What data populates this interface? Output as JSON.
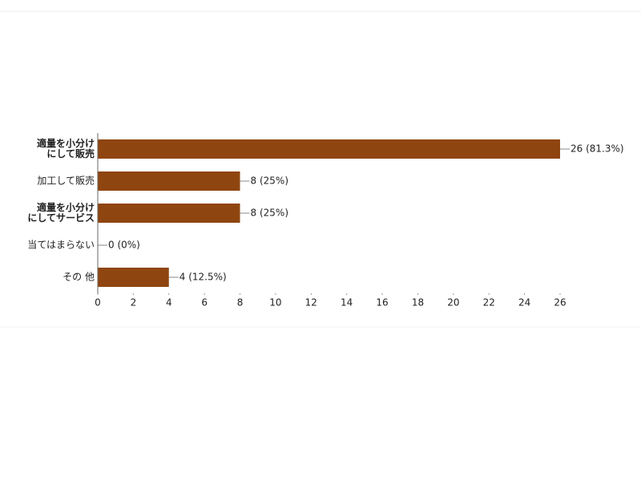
{
  "chart_data": {
    "type": "bar",
    "orientation": "horizontal",
    "categories": [
      [
        "適量を小分け",
        "にして販売"
      ],
      [
        "加工して販売"
      ],
      [
        "適量を小分け",
        "にしてサービス"
      ],
      [
        "当てはまらない"
      ],
      [
        "その 他"
      ]
    ],
    "values": [
      26,
      8,
      8,
      0,
      4
    ],
    "value_labels": [
      "26 (81.3%)",
      "8 (25%)",
      "8 (25%)",
      "0 (0%)",
      "4 (12.5%)"
    ],
    "color": "#8f4510",
    "xlim": [
      0,
      26
    ],
    "xticks": [
      0,
      2,
      4,
      6,
      8,
      10,
      12,
      14,
      16,
      18,
      20,
      22,
      24,
      26
    ]
  }
}
